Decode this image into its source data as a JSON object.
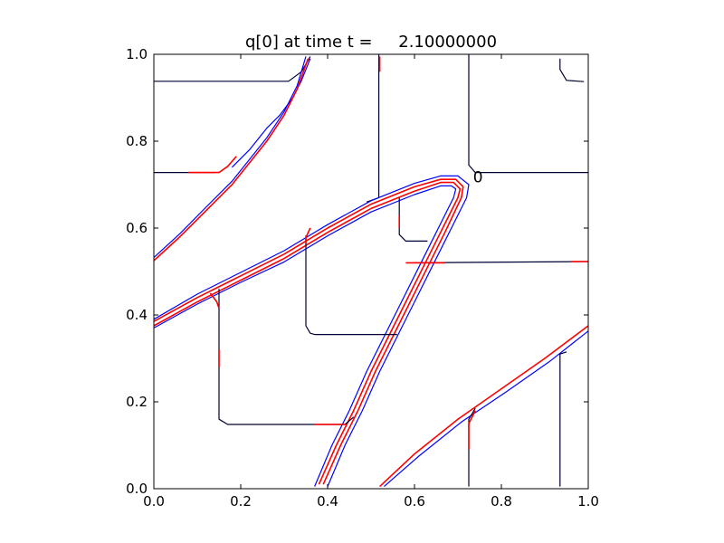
{
  "chart_data": {
    "type": "line",
    "title": "q[0] at time t =     2.10000000",
    "xlabel": "",
    "ylabel": "",
    "xlim": [
      0.0,
      1.0
    ],
    "ylim": [
      0.0,
      1.0
    ],
    "x_ticks": [
      "0.0",
      "0.2",
      "0.4",
      "0.6",
      "0.8",
      "1.0"
    ],
    "y_ticks": [
      "0.0",
      "0.2",
      "0.4",
      "0.6",
      "0.8",
      "1.0"
    ],
    "grid": false,
    "annotations": [
      {
        "text": "0",
        "x": 0.735,
        "y": 0.705
      }
    ],
    "colors": {
      "blue": "#0000ff",
      "red": "#ff0000",
      "black": "#000000",
      "navy": "#000033"
    },
    "series": [
      {
        "color": "navy",
        "points": [
          [
            0.0,
            0.938
          ],
          [
            0.31,
            0.938
          ],
          [
            0.34,
            0.96
          ],
          [
            0.36,
            0.995
          ]
        ]
      },
      {
        "color": "navy",
        "points": [
          [
            0.0,
            0.728
          ],
          [
            0.14,
            0.728
          ]
        ]
      },
      {
        "color": "red",
        "points": [
          [
            0.08,
            0.728
          ],
          [
            0.15,
            0.728
          ],
          [
            0.17,
            0.742
          ],
          [
            0.19,
            0.765
          ]
        ]
      },
      {
        "color": "blue",
        "points": [
          [
            0.18,
            0.74
          ],
          [
            0.22,
            0.78
          ],
          [
            0.26,
            0.83
          ],
          [
            0.29,
            0.86
          ],
          [
            0.32,
            0.9
          ],
          [
            0.34,
            0.94
          ],
          [
            0.36,
            0.99
          ]
        ]
      },
      {
        "color": "red",
        "points": [
          [
            0.0,
            0.525
          ],
          [
            0.06,
            0.58
          ],
          [
            0.12,
            0.64
          ],
          [
            0.18,
            0.7
          ],
          [
            0.22,
            0.75
          ],
          [
            0.26,
            0.8
          ],
          [
            0.3,
            0.86
          ],
          [
            0.33,
            0.92
          ],
          [
            0.355,
            0.99
          ]
        ]
      },
      {
        "color": "blue",
        "points": [
          [
            0.0,
            0.532
          ],
          [
            0.06,
            0.587
          ],
          [
            0.12,
            0.648
          ],
          [
            0.18,
            0.708
          ],
          [
            0.22,
            0.758
          ],
          [
            0.26,
            0.808
          ],
          [
            0.3,
            0.868
          ],
          [
            0.33,
            0.928
          ],
          [
            0.35,
            0.995
          ]
        ]
      },
      {
        "color": "navy",
        "points": [
          [
            0.518,
            1.0
          ],
          [
            0.518,
            0.67
          ],
          [
            0.49,
            0.66
          ]
        ]
      },
      {
        "color": "red",
        "points": [
          [
            0.52,
            0.995
          ],
          [
            0.52,
            0.96
          ]
        ]
      },
      {
        "color": "navy",
        "points": [
          [
            0.725,
            1.0
          ],
          [
            0.725,
            0.745
          ],
          [
            0.74,
            0.728
          ],
          [
            1.0,
            0.728
          ]
        ]
      },
      {
        "color": "navy",
        "points": [
          [
            0.935,
            0.99
          ],
          [
            0.935,
            0.965
          ],
          [
            0.95,
            0.94
          ],
          [
            0.99,
            0.937
          ]
        ]
      },
      {
        "color": "red",
        "points": [
          [
            0.0,
            0.375
          ],
          [
            0.1,
            0.43
          ],
          [
            0.2,
            0.48
          ],
          [
            0.3,
            0.53
          ],
          [
            0.4,
            0.59
          ],
          [
            0.5,
            0.645
          ],
          [
            0.6,
            0.685
          ],
          [
            0.66,
            0.705
          ],
          [
            0.69,
            0.705
          ],
          [
            0.705,
            0.69
          ],
          [
            0.7,
            0.67
          ],
          [
            0.66,
            0.59
          ],
          [
            0.62,
            0.51
          ],
          [
            0.58,
            0.43
          ],
          [
            0.54,
            0.35
          ],
          [
            0.5,
            0.27
          ],
          [
            0.46,
            0.18
          ],
          [
            0.42,
            0.1
          ],
          [
            0.38,
            0.01
          ]
        ]
      },
      {
        "color": "red",
        "points": [
          [
            0.0,
            0.385
          ],
          [
            0.1,
            0.44
          ],
          [
            0.2,
            0.49
          ],
          [
            0.3,
            0.54
          ],
          [
            0.4,
            0.6
          ],
          [
            0.5,
            0.655
          ],
          [
            0.6,
            0.695
          ],
          [
            0.66,
            0.712
          ],
          [
            0.695,
            0.712
          ],
          [
            0.712,
            0.695
          ],
          [
            0.708,
            0.67
          ],
          [
            0.67,
            0.59
          ],
          [
            0.63,
            0.51
          ],
          [
            0.59,
            0.43
          ],
          [
            0.55,
            0.35
          ],
          [
            0.51,
            0.27
          ],
          [
            0.47,
            0.18
          ],
          [
            0.43,
            0.1
          ],
          [
            0.39,
            0.01
          ]
        ]
      },
      {
        "color": "blue",
        "points": [
          [
            0.0,
            0.37
          ],
          [
            0.1,
            0.425
          ],
          [
            0.2,
            0.475
          ],
          [
            0.3,
            0.522
          ],
          [
            0.4,
            0.582
          ],
          [
            0.5,
            0.637
          ],
          [
            0.6,
            0.677
          ],
          [
            0.66,
            0.697
          ],
          [
            0.685,
            0.697
          ],
          [
            0.695,
            0.69
          ],
          [
            0.69,
            0.67
          ],
          [
            0.65,
            0.59
          ],
          [
            0.61,
            0.51
          ],
          [
            0.57,
            0.43
          ],
          [
            0.53,
            0.35
          ],
          [
            0.49,
            0.27
          ],
          [
            0.45,
            0.18
          ],
          [
            0.41,
            0.1
          ],
          [
            0.37,
            0.005
          ]
        ]
      },
      {
        "color": "blue",
        "points": [
          [
            0.0,
            0.39
          ],
          [
            0.1,
            0.448
          ],
          [
            0.2,
            0.498
          ],
          [
            0.3,
            0.548
          ],
          [
            0.4,
            0.608
          ],
          [
            0.5,
            0.663
          ],
          [
            0.6,
            0.703
          ],
          [
            0.66,
            0.72
          ],
          [
            0.7,
            0.72
          ],
          [
            0.725,
            0.7
          ],
          [
            0.72,
            0.67
          ],
          [
            0.68,
            0.59
          ],
          [
            0.64,
            0.51
          ],
          [
            0.6,
            0.43
          ],
          [
            0.56,
            0.35
          ],
          [
            0.52,
            0.27
          ],
          [
            0.48,
            0.18
          ],
          [
            0.44,
            0.1
          ],
          [
            0.4,
            0.005
          ]
        ]
      },
      {
        "color": "navy",
        "points": [
          [
            0.35,
            0.583
          ],
          [
            0.35,
            0.57
          ],
          [
            0.35,
            0.375
          ],
          [
            0.36,
            0.358
          ],
          [
            0.37,
            0.355
          ],
          [
            0.56,
            0.355
          ]
        ]
      },
      {
        "color": "red",
        "points": [
          [
            0.36,
            0.6
          ],
          [
            0.35,
            0.578
          ],
          [
            0.35,
            0.565
          ]
        ]
      },
      {
        "color": "navy",
        "points": [
          [
            0.15,
            0.46
          ],
          [
            0.15,
            0.16
          ],
          [
            0.17,
            0.148
          ],
          [
            0.44,
            0.148
          ],
          [
            0.46,
            0.165
          ]
        ]
      },
      {
        "color": "red",
        "points": [
          [
            0.13,
            0.45
          ],
          [
            0.145,
            0.43
          ],
          [
            0.15,
            0.415
          ]
        ]
      },
      {
        "color": "red",
        "points": [
          [
            0.15,
            0.32
          ],
          [
            0.15,
            0.28
          ]
        ]
      },
      {
        "color": "red",
        "points": [
          [
            0.37,
            0.148
          ],
          [
            0.44,
            0.148
          ]
        ]
      },
      {
        "color": "navy",
        "points": [
          [
            0.6,
            0.52
          ],
          [
            1.0,
            0.523
          ]
        ]
      },
      {
        "color": "red",
        "points": [
          [
            0.58,
            0.52
          ],
          [
            0.67,
            0.52
          ]
        ]
      },
      {
        "color": "red",
        "points": [
          [
            0.96,
            0.523
          ],
          [
            1.0,
            0.523
          ]
        ]
      },
      {
        "color": "navy",
        "points": [
          [
            0.565,
            0.67
          ],
          [
            0.565,
            0.585
          ],
          [
            0.58,
            0.57
          ],
          [
            0.63,
            0.57
          ]
        ]
      },
      {
        "color": "red",
        "points": [
          [
            0.565,
            0.63
          ],
          [
            0.565,
            0.6
          ]
        ]
      },
      {
        "color": "red",
        "points": [
          [
            0.52,
            0.005
          ],
          [
            0.6,
            0.08
          ],
          [
            0.7,
            0.16
          ],
          [
            0.8,
            0.23
          ],
          [
            0.9,
            0.3
          ],
          [
            1.0,
            0.375
          ]
        ]
      },
      {
        "color": "blue",
        "points": [
          [
            0.53,
            0.005
          ],
          [
            0.61,
            0.075
          ],
          [
            0.71,
            0.155
          ],
          [
            0.81,
            0.222
          ],
          [
            0.91,
            0.292
          ],
          [
            1.0,
            0.363
          ]
        ]
      },
      {
        "color": "navy",
        "points": [
          [
            0.725,
            0.005
          ],
          [
            0.725,
            0.16
          ],
          [
            0.74,
            0.185
          ]
        ]
      },
      {
        "color": "red",
        "points": [
          [
            0.725,
            0.09
          ],
          [
            0.725,
            0.15
          ],
          [
            0.74,
            0.18
          ]
        ]
      },
      {
        "color": "navy",
        "points": [
          [
            0.935,
            0.005
          ],
          [
            0.935,
            0.31
          ],
          [
            0.95,
            0.315
          ]
        ]
      }
    ]
  }
}
